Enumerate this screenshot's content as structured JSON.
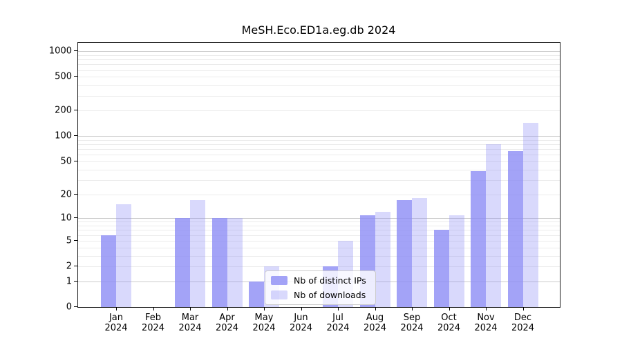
{
  "chart_data": {
    "type": "bar",
    "title": "MeSH.Eco.ED1a.eg.db 2024",
    "months": [
      "Jan",
      "Feb",
      "Mar",
      "Apr",
      "May",
      "Jun",
      "Jul",
      "Aug",
      "Sep",
      "Oct",
      "Nov",
      "Dec"
    ],
    "year_label": "2024",
    "series": [
      {
        "name": "Nb of distinct IPs",
        "color": "rgba(140,140,245,0.8)",
        "values": [
          6,
          0,
          10,
          10,
          1,
          0,
          2,
          11,
          17,
          7,
          38,
          67
        ]
      },
      {
        "name": "Nb of downloads",
        "color": "rgba(140,140,245,0.33)",
        "values": [
          15,
          0,
          17,
          10,
          2,
          0,
          5,
          12,
          18,
          11,
          80,
          143
        ]
      }
    ],
    "y_ticks": [
      {
        "value": 0,
        "label": "0"
      },
      {
        "value": 1,
        "label": "1"
      },
      {
        "value": 2,
        "label": "2"
      },
      {
        "value": 5,
        "label": "5"
      },
      {
        "value": 10,
        "label": "10"
      },
      {
        "value": 20,
        "label": "20"
      },
      {
        "value": 50,
        "label": "50"
      },
      {
        "value": 100,
        "label": "100"
      },
      {
        "value": 200,
        "label": "200"
      },
      {
        "value": 500,
        "label": "500"
      },
      {
        "value": 1000,
        "label": "1000"
      }
    ],
    "y_scale": "log10(1+v)",
    "y_major_gridlines": [
      1,
      10,
      100,
      1000
    ],
    "grid": "horizontal",
    "legend_position": "inside-bottom-center",
    "xlabel": "",
    "ylabel": ""
  }
}
